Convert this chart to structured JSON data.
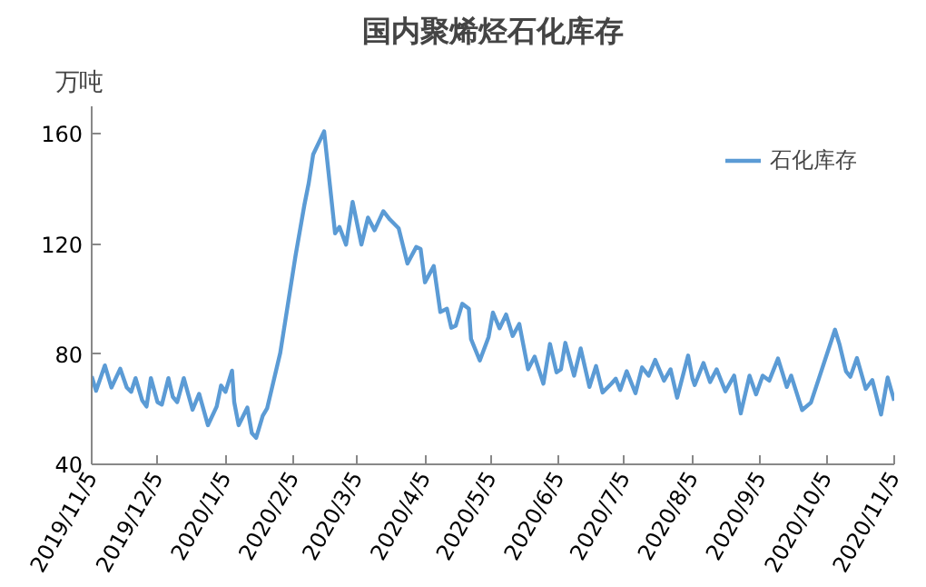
{
  "chart_data": {
    "type": "line",
    "title": "国内聚烯烃石化库存",
    "ylabel": "万吨",
    "xlim": [
      "2019-11-05",
      "2020-11-05"
    ],
    "ylim": [
      40,
      170
    ],
    "yticks": [
      40,
      80,
      120,
      160
    ],
    "xticks": [
      {
        "value": "2019-11-05",
        "label": "2019/11/5"
      },
      {
        "value": "2019-12-05",
        "label": "2019/12/5"
      },
      {
        "value": "2020-01-05",
        "label": "2020/1/5"
      },
      {
        "value": "2020-02-05",
        "label": "2020/2/5"
      },
      {
        "value": "2020-03-05",
        "label": "2020/3/5"
      },
      {
        "value": "2020-04-05",
        "label": "2020/4/5"
      },
      {
        "value": "2020-05-05",
        "label": "2020/5/5"
      },
      {
        "value": "2020-06-05",
        "label": "2020/6/5"
      },
      {
        "value": "2020-07-05",
        "label": "2020/7/5"
      },
      {
        "value": "2020-08-05",
        "label": "2020/8/5"
      },
      {
        "value": "2020-09-05",
        "label": "2020/9/5"
      },
      {
        "value": "2020-10-05",
        "label": "2020/10/5"
      },
      {
        "value": "2020-11-05",
        "label": "2020/11/5"
      }
    ],
    "grid": false,
    "legend": "top right",
    "line_style": "solid",
    "marker": "none",
    "series": [
      {
        "name": "石化库存",
        "color": "#5b9bd5",
        "x": [
          "2019-11-05",
          "2019-11-07",
          "2019-11-11",
          "2019-11-14",
          "2019-11-18",
          "2019-11-21",
          "2019-11-23",
          "2019-11-25",
          "2019-11-28",
          "2019-11-30",
          "2019-12-02",
          "2019-12-05",
          "2019-12-07",
          "2019-12-10",
          "2019-12-12",
          "2019-12-14",
          "2019-12-17",
          "2019-12-21",
          "2019-12-24",
          "2019-12-28",
          "2020-01-01",
          "2020-01-03",
          "2020-01-05",
          "2020-01-08",
          "2020-01-09",
          "2020-01-11",
          "2020-01-15",
          "2020-01-17",
          "2020-01-19",
          "2020-01-22",
          "2020-01-24",
          "2020-01-30",
          "2020-02-06",
          "2020-02-10",
          "2020-02-12",
          "2020-02-14",
          "2020-02-19",
          "2020-02-24",
          "2020-02-26",
          "2020-02-29",
          "2020-03-03",
          "2020-03-07",
          "2020-03-10",
          "2020-03-13",
          "2020-03-17",
          "2020-03-20",
          "2020-03-24",
          "2020-03-28",
          "2020-04-01",
          "2020-04-03",
          "2020-04-05",
          "2020-04-09",
          "2020-04-12",
          "2020-04-15",
          "2020-04-17",
          "2020-04-19",
          "2020-04-22",
          "2020-04-25",
          "2020-04-26",
          "2020-04-30",
          "2020-05-04",
          "2020-05-06",
          "2020-05-09",
          "2020-05-12",
          "2020-05-15",
          "2020-05-18",
          "2020-05-22",
          "2020-05-25",
          "2020-05-29",
          "2020-06-01",
          "2020-06-04",
          "2020-06-06",
          "2020-06-08",
          "2020-06-12",
          "2020-06-15",
          "2020-06-19",
          "2020-06-22",
          "2020-06-25",
          "2020-06-29",
          "2020-07-01",
          "2020-07-03",
          "2020-07-06",
          "2020-07-10",
          "2020-07-13",
          "2020-07-16",
          "2020-07-19",
          "2020-07-23",
          "2020-07-26",
          "2020-07-29",
          "2020-08-03",
          "2020-08-05",
          "2020-08-06",
          "2020-08-10",
          "2020-08-13",
          "2020-08-16",
          "2020-08-20",
          "2020-08-24",
          "2020-08-27",
          "2020-08-31",
          "2020-09-03",
          "2020-09-06",
          "2020-09-09",
          "2020-09-13",
          "2020-09-17",
          "2020-09-19",
          "2020-09-24",
          "2020-09-28",
          "2020-10-09",
          "2020-10-11",
          "2020-10-14",
          "2020-10-16",
          "2020-10-19",
          "2020-10-23",
          "2020-10-26",
          "2020-10-30",
          "2020-11-02",
          "2020-11-05"
        ],
        "values": [
          72,
          66.7,
          75.9,
          67.9,
          74.7,
          67.9,
          66.3,
          71.3,
          63.3,
          61,
          71.3,
          62.6,
          61.7,
          71.3,
          64.5,
          62.6,
          71.3,
          59.8,
          65.6,
          54.2,
          61,
          68.6,
          66.3,
          74,
          62.6,
          54.2,
          60.6,
          51.4,
          49.6,
          57.6,
          60.3,
          80.5,
          115.9,
          134.2,
          142.2,
          152.5,
          160.9,
          123.9,
          126.2,
          119.8,
          135.3,
          119.8,
          129.6,
          125,
          131.9,
          128.9,
          125.7,
          112.9,
          118.9,
          118.2,
          106.1,
          112,
          95.3,
          96.5,
          89.6,
          90.3,
          98.3,
          96.5,
          85.5,
          77.7,
          86.2,
          95.1,
          89.4,
          94.4,
          86.6,
          91,
          74.5,
          79.1,
          69.3,
          83.7,
          73.4,
          74.5,
          84.1,
          72.2,
          82.1,
          68.1,
          75.7,
          66.1,
          69.3,
          71.1,
          67,
          73.8,
          65.8,
          75.2,
          72.2,
          77.9,
          70.4,
          74.5,
          64.2,
          79.5,
          71.1,
          68.8,
          76.8,
          69.9,
          74.5,
          66.5,
          72.2,
          58.5,
          72.2,
          65.4,
          72.2,
          70.4,
          78.4,
          68.1,
          72.2,
          59.7,
          62.4,
          88.9,
          83.7,
          73.8,
          71.8,
          78.6,
          67.4,
          70.6,
          58.1,
          71.5,
          63.1
        ]
      }
    ]
  }
}
